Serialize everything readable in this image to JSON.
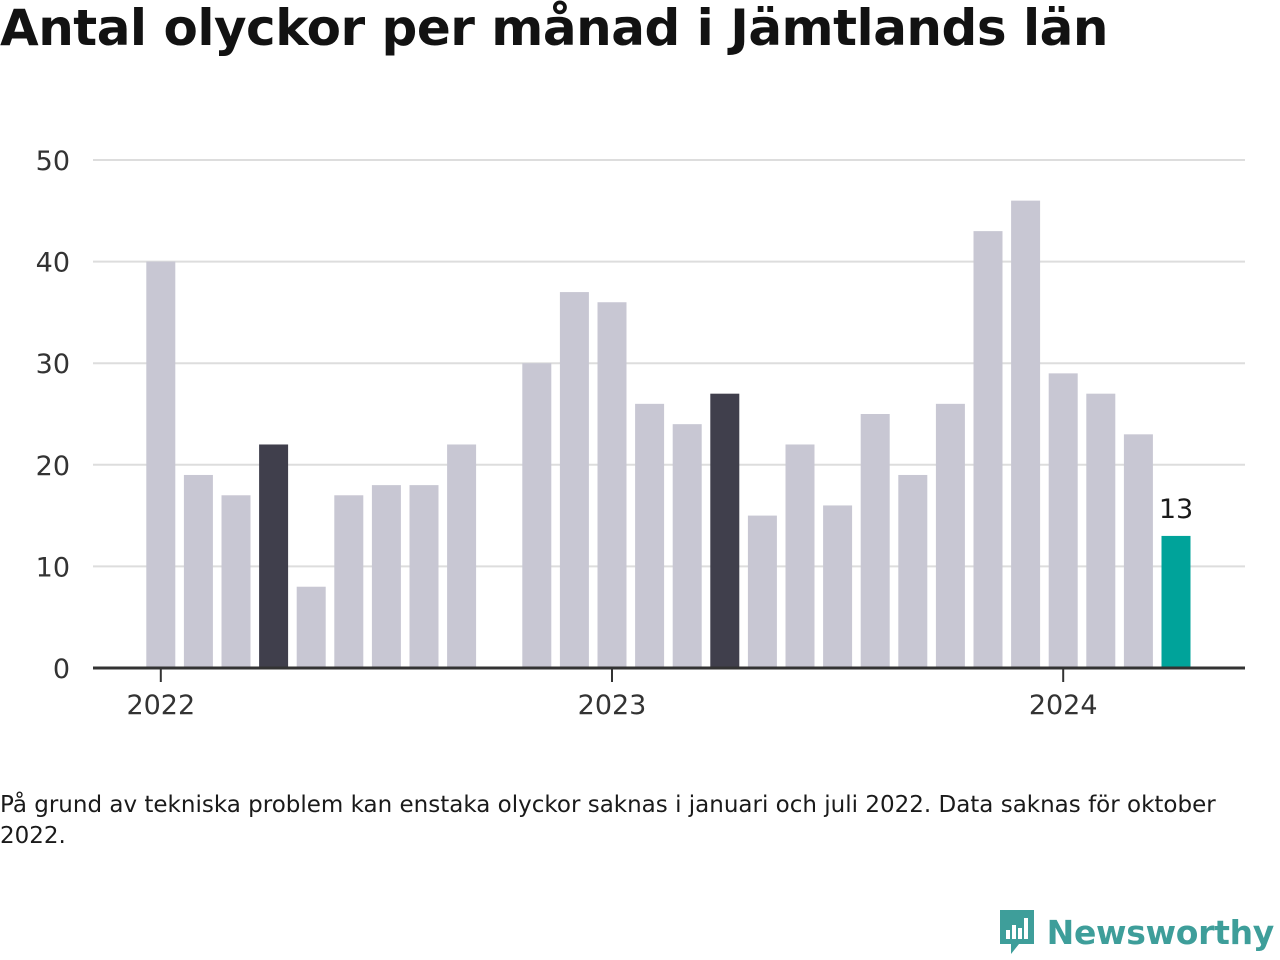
{
  "title": "Antal olyckor per månad i Jämtlands län",
  "note": "På grund av tekniska problem kan enstaka olyckor saknas i januari och juli 2022. Data saknas för oktober 2022.",
  "brand": {
    "name": "Newsworthy",
    "icon": "newsworthy-logo-icon"
  },
  "colors": {
    "default_bar": "#c8c7d3",
    "highlight_bar": "#403f4c",
    "latest_bar": "#00a39a",
    "gridline": "#dddddd",
    "axis": "#333333"
  },
  "chart_data": {
    "type": "bar",
    "categories": [
      "2022-01",
      "2022-02",
      "2022-03",
      "2022-04",
      "2022-05",
      "2022-06",
      "2022-07",
      "2022-08",
      "2022-09",
      "2022-10",
      "2022-11",
      "2022-12",
      "2023-01",
      "2023-02",
      "2023-03",
      "2023-04",
      "2023-05",
      "2023-06",
      "2023-07",
      "2023-08",
      "2023-09",
      "2023-10",
      "2023-11",
      "2023-12",
      "2024-01",
      "2024-02",
      "2024-03",
      "2024-04"
    ],
    "values": [
      40,
      19,
      17,
      22,
      8,
      17,
      18,
      18,
      22,
      null,
      30,
      37,
      36,
      26,
      24,
      27,
      15,
      22,
      16,
      25,
      19,
      26,
      43,
      46,
      29,
      27,
      23,
      13
    ],
    "highlight_categories": [
      "2022-04",
      "2023-04"
    ],
    "latest_category": "2024-04",
    "data_labels": [
      {
        "category": "2024-04",
        "text": "13"
      }
    ],
    "yticks": [
      "0",
      "10",
      "20",
      "30",
      "40",
      "50"
    ],
    "ylim": [
      0,
      50
    ],
    "xticks": [
      {
        "category": "2022-01",
        "label": "2022"
      },
      {
        "category": "2023-01",
        "label": "2023"
      },
      {
        "category": "2024-01",
        "label": "2024"
      }
    ],
    "grid": true,
    "xlabel": "",
    "ylabel": ""
  }
}
